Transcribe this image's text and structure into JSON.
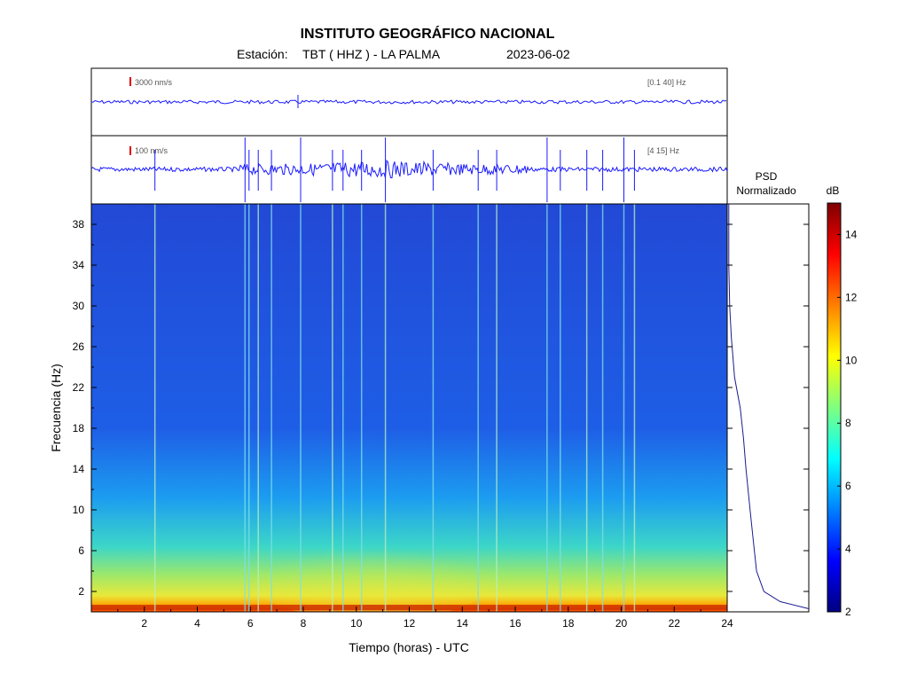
{
  "header": {
    "title": "INSTITUTO GEOGRÁFICO NACIONAL",
    "station_prefix": "Estación:",
    "station": "TBT ( HHZ ) - LA PALMA",
    "date": "2023-06-02"
  },
  "trace_top": {
    "scale_label": "3000 nm/s",
    "band_label": "[0.1 40] Hz"
  },
  "trace_bottom": {
    "scale_label": "100 nm/s",
    "band_label": "[4 15] Hz"
  },
  "psd": {
    "title_line1": "PSD",
    "title_line2": "Normalizado"
  },
  "colorbar": {
    "unit": "dB",
    "ticks": [
      "2",
      "4",
      "6",
      "8",
      "10",
      "12",
      "14"
    ],
    "stops": [
      "#00007f",
      "#0000ff",
      "#0080ff",
      "#00ffff",
      "#80ff80",
      "#ffff00",
      "#ff8000",
      "#ff0000",
      "#7f0000"
    ]
  },
  "chart_data": {
    "type": "heatmap",
    "xlabel": "Tiempo (horas) - UTC",
    "ylabel": "Frecuencia  (Hz)",
    "xlim": [
      0,
      24
    ],
    "ylim": [
      0,
      40
    ],
    "clim": [
      2,
      15
    ],
    "x_ticks": [
      "2",
      "4",
      "6",
      "8",
      "10",
      "12",
      "14",
      "16",
      "18",
      "20",
      "22",
      "24"
    ],
    "y_ticks": [
      "2",
      "6",
      "10",
      "14",
      "18",
      "22",
      "26",
      "30",
      "34",
      "38"
    ],
    "event_times_hours": [
      2.4,
      5.8,
      5.95,
      6.3,
      6.8,
      7.9,
      9.1,
      9.5,
      10.2,
      11.1,
      12.9,
      14.6,
      15.3,
      17.2,
      17.7,
      18.7,
      19.3,
      20.1,
      20.5
    ],
    "psd_profile": [
      [
        40,
        0.02
      ],
      [
        34,
        0.02
      ],
      [
        30,
        0.03
      ],
      [
        27,
        0.05
      ],
      [
        23,
        0.09
      ],
      [
        20,
        0.16
      ],
      [
        17,
        0.2
      ],
      [
        14,
        0.23
      ],
      [
        10,
        0.28
      ],
      [
        7,
        0.32
      ],
      [
        4,
        0.36
      ],
      [
        2,
        0.45
      ],
      [
        1,
        0.65
      ],
      [
        0.3,
        1.0
      ]
    ]
  }
}
